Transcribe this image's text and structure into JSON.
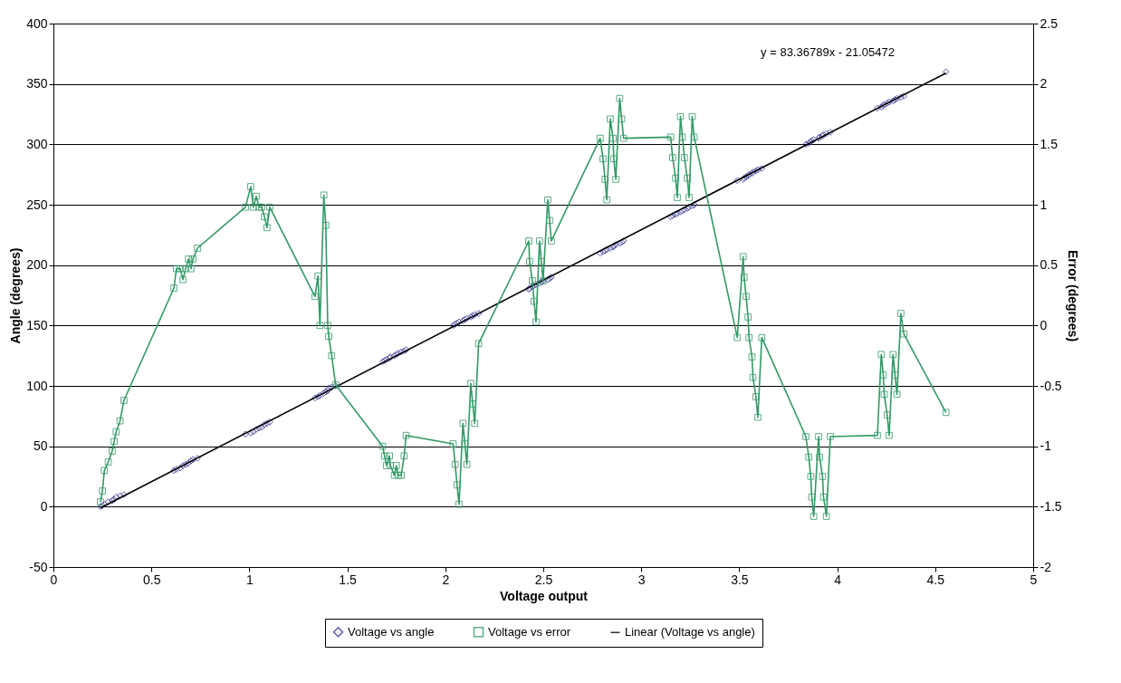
{
  "chart_data": {
    "type": "scatter",
    "xlabel": "Voltage output",
    "ylabel": "Angle (degrees)",
    "y2label": "Error (degrees)",
    "xlim": [
      0,
      5
    ],
    "xticks": [
      0,
      0.5,
      1,
      1.5,
      2,
      2.5,
      3,
      3.5,
      4,
      4.5,
      5
    ],
    "ylim": [
      -50,
      400
    ],
    "yticks": [
      -50,
      0,
      50,
      100,
      150,
      200,
      250,
      300,
      350,
      400
    ],
    "y2lim": [
      -2,
      2.5
    ],
    "y2ticks": [
      -2,
      -1.5,
      -1,
      -0.5,
      0,
      0.5,
      1,
      1.5,
      2,
      2.5
    ],
    "grid": "y",
    "legend": "bottom",
    "annotations": [
      "y = 83.36789x - 21.05472"
    ],
    "series": [
      {
        "name": "Voltage vs angle",
        "marker": "diamond",
        "color": "#333399",
        "x": [
          0.24,
          0.25,
          0.26,
          0.28,
          0.3,
          0.31,
          0.32,
          0.34,
          0.36,
          0.615,
          0.628,
          0.647,
          0.661,
          0.675,
          0.689,
          0.702,
          0.712,
          0.735,
          0.98,
          1.007,
          1.02,
          1.035,
          1.05,
          1.063,
          1.077,
          1.09,
          1.104,
          1.335,
          1.35,
          1.36,
          1.38,
          1.39,
          1.4,
          1.405,
          1.42,
          1.44,
          1.68,
          1.69,
          1.7,
          1.715,
          1.72,
          1.74,
          1.75,
          1.76,
          1.775,
          1.79,
          1.8,
          2.04,
          2.05,
          2.06,
          2.07,
          2.09,
          2.1,
          2.11,
          2.13,
          2.14,
          2.15,
          2.17,
          2.426,
          2.43,
          2.444,
          2.453,
          2.463,
          2.481,
          2.49,
          2.499,
          2.523,
          2.532,
          2.541,
          2.79,
          2.805,
          2.815,
          2.824,
          2.842,
          2.856,
          2.86,
          2.87,
          2.89,
          2.9,
          2.91,
          3.15,
          3.16,
          3.175,
          3.184,
          3.2,
          3.21,
          3.22,
          3.235,
          3.244,
          3.26,
          3.27,
          3.49,
          3.52,
          3.525,
          3.535,
          3.545,
          3.55,
          3.565,
          3.57,
          3.585,
          3.595,
          3.615,
          3.84,
          3.855,
          3.865,
          3.87,
          3.88,
          3.905,
          3.91,
          3.925,
          3.93,
          3.945,
          3.965,
          4.205,
          4.225,
          4.235,
          4.24,
          4.255,
          4.265,
          4.285,
          4.295,
          4.305,
          4.325,
          4.34,
          4.555
        ],
        "values": [
          0,
          1,
          2,
          4,
          5,
          6,
          8,
          9,
          10,
          30,
          31,
          32,
          34,
          35,
          36,
          38,
          39,
          40,
          60,
          61,
          62,
          64,
          65,
          66,
          68,
          69,
          70,
          90,
          91,
          92,
          94,
          95,
          96,
          98,
          99,
          100,
          120,
          121,
          122,
          123,
          124,
          125,
          126,
          127,
          128,
          129,
          130,
          150,
          151,
          152,
          153,
          154,
          155,
          156,
          157,
          158,
          159,
          160,
          180,
          181,
          182,
          183,
          184,
          185,
          186,
          187,
          188,
          189,
          190,
          210,
          211,
          212,
          213,
          214,
          215,
          216,
          217,
          218,
          219,
          220,
          240,
          241,
          242,
          243,
          244,
          245,
          246,
          247,
          248,
          249,
          250,
          270,
          271,
          272,
          273,
          274,
          275,
          276,
          277,
          278,
          279,
          280,
          300,
          301,
          302,
          303,
          304,
          305,
          306,
          307,
          308,
          309,
          310,
          330,
          331,
          332,
          333,
          334,
          335,
          336,
          337,
          338,
          339,
          340,
          360
        ]
      },
      {
        "name": "Voltage vs error",
        "type": "line",
        "marker": "square",
        "axis": "y2",
        "color": "#339966",
        "x": [
          0.24,
          0.25,
          0.26,
          0.28,
          0.3,
          0.31,
          0.32,
          0.34,
          0.36,
          0.615,
          0.628,
          0.647,
          0.661,
          0.675,
          0.689,
          0.702,
          0.712,
          0.735,
          0.98,
          1.007,
          1.02,
          1.035,
          1.05,
          1.063,
          1.077,
          1.09,
          1.104,
          1.335,
          1.35,
          1.36,
          1.38,
          1.39,
          1.4,
          1.405,
          1.42,
          1.44,
          1.68,
          1.69,
          1.7,
          1.715,
          1.72,
          1.74,
          1.75,
          1.76,
          1.775,
          1.79,
          1.8,
          2.04,
          2.05,
          2.06,
          2.07,
          2.09,
          2.1,
          2.11,
          2.13,
          2.14,
          2.15,
          2.17,
          2.426,
          2.43,
          2.444,
          2.453,
          2.463,
          2.481,
          2.49,
          2.499,
          2.523,
          2.532,
          2.541,
          2.79,
          2.805,
          2.815,
          2.824,
          2.842,
          2.856,
          2.86,
          2.87,
          2.89,
          2.9,
          2.91,
          3.15,
          3.16,
          3.175,
          3.184,
          3.2,
          3.21,
          3.22,
          3.235,
          3.244,
          3.26,
          3.27,
          3.49,
          3.52,
          3.525,
          3.535,
          3.545,
          3.55,
          3.565,
          3.57,
          3.585,
          3.595,
          3.615,
          3.84,
          3.855,
          3.865,
          3.87,
          3.88,
          3.905,
          3.91,
          3.925,
          3.93,
          3.945,
          3.965,
          4.205,
          4.225,
          4.235,
          4.24,
          4.255,
          4.265,
          4.285,
          4.295,
          4.305,
          4.325,
          4.34,
          4.555
        ],
        "values": [
          -1.46,
          -1.37,
          -1.2,
          -1.13,
          -1.04,
          -0.96,
          -0.88,
          -0.79,
          -0.62,
          0.31,
          0.47,
          0.47,
          0.38,
          0.47,
          0.55,
          0.47,
          0.55,
          0.64,
          0.98,
          1.15,
          0.98,
          1.07,
          0.98,
          0.98,
          0.9,
          0.81,
          0.98,
          0.24,
          0.41,
          0,
          1.08,
          0.83,
          0,
          -0.09,
          -0.25,
          -0.49,
          -1.0,
          -1.08,
          -1.16,
          -1.08,
          -1.16,
          -1.24,
          -1.16,
          -1.24,
          -1.24,
          -1.08,
          -0.91,
          -0.98,
          -1.15,
          -1.32,
          -1.48,
          -0.81,
          -0.98,
          -1.15,
          -0.48,
          -0.65,
          -0.81,
          -0.15,
          0.7,
          0.53,
          0.37,
          0.2,
          0.03,
          0.7,
          0.53,
          0.37,
          1.04,
          0.87,
          0.7,
          1.55,
          1.38,
          1.21,
          1.04,
          1.71,
          1.55,
          1.38,
          1.21,
          1.88,
          1.71,
          1.55,
          1.56,
          1.39,
          1.22,
          1.06,
          1.73,
          1.56,
          1.39,
          1.22,
          1.06,
          1.73,
          1.56,
          -0.1,
          0.57,
          0.4,
          0.24,
          0.07,
          -0.1,
          -0.26,
          -0.43,
          -0.59,
          -0.76,
          -0.1,
          -0.92,
          -1.09,
          -1.25,
          -1.42,
          -1.58,
          -0.92,
          -1.09,
          -1.25,
          -1.42,
          -1.58,
          -0.92,
          -0.91,
          -0.24,
          -0.41,
          -0.57,
          -0.74,
          -0.91,
          -0.24,
          -0.41,
          -0.57,
          0.1,
          -0.07,
          -0.72
        ]
      },
      {
        "name": "Linear (Voltage vs angle)",
        "type": "line",
        "color": "#000000",
        "x": [
          0.24,
          4.555
        ],
        "values": [
          -1,
          359
        ]
      }
    ]
  }
}
